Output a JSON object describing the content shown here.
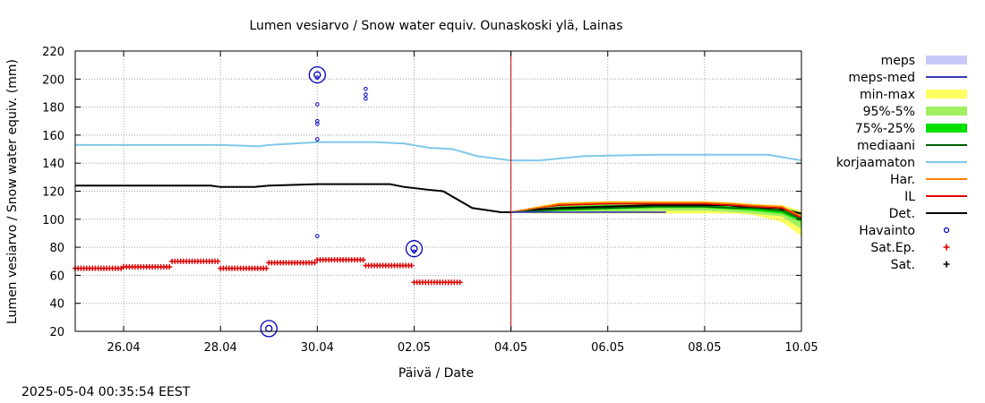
{
  "chart_data": {
    "type": "line",
    "title": "Lumen vesiarvo / Snow water equiv.  Ounaskoski ylä, Lainas",
    "xlabel": "Päivä / Date",
    "ylabel": "Lumen vesiarvo / Snow water equiv. (mm)",
    "ylim": [
      20,
      220
    ],
    "yticks": [
      20,
      40,
      60,
      80,
      100,
      120,
      140,
      160,
      180,
      200,
      220
    ],
    "xlim": [
      0,
      15
    ],
    "xtick_pos": [
      1,
      3,
      5,
      7,
      9,
      11,
      13,
      15
    ],
    "xtick_labels": [
      "26.04",
      "28.04",
      "30.04",
      "02.05",
      "04.05",
      "06.05",
      "08.05",
      "10.05"
    ],
    "now_marker_x": 9.0,
    "grid": true,
    "legend_position": "right",
    "legend": [
      {
        "label": "meps",
        "kind": "band",
        "color": "#c8c8f8"
      },
      {
        "label": "meps-med",
        "kind": "line",
        "color": "#3838b0"
      },
      {
        "label": "min-max",
        "kind": "band",
        "color": "#ffff60"
      },
      {
        "label": "95%-5%",
        "kind": "band",
        "color": "#a0f060"
      },
      {
        "label": "75%-25%",
        "kind": "band",
        "color": "#00e000"
      },
      {
        "label": "mediaani",
        "kind": "line",
        "color": "#006000"
      },
      {
        "label": "korjaamaton",
        "kind": "line",
        "color": "#80c8e8"
      },
      {
        "label": "Har.",
        "kind": "line",
        "color": "#ff8000"
      },
      {
        "label": "IL",
        "kind": "line",
        "color": "#e00000"
      },
      {
        "label": "Det.",
        "kind": "line",
        "color": "#000000"
      },
      {
        "label": "Havainto",
        "kind": "circle",
        "color": "#0000c0"
      },
      {
        "label": "Sat.Ep.",
        "kind": "plus",
        "color": "#e00000"
      },
      {
        "label": "Sat.",
        "kind": "plus",
        "color": "#000000"
      }
    ],
    "series": [
      {
        "name": "korjaamaton",
        "color": "#80c8e8",
        "x": [
          0,
          2.5,
          3,
          3.8,
          4,
          5,
          6.2,
          6.8,
          7.3,
          7.8,
          8.3,
          9,
          9.6,
          10.5,
          12,
          13,
          14.3,
          15
        ],
        "y": [
          153,
          153,
          153,
          152,
          153,
          155,
          155,
          154,
          151,
          150,
          145,
          142,
          142,
          145,
          146,
          146,
          146,
          142
        ]
      },
      {
        "name": "Det.",
        "color": "#000000",
        "x": [
          0,
          2,
          2.8,
          3,
          3.7,
          4,
          5,
          6.5,
          6.8,
          7.3,
          7.6,
          8.2,
          8.8,
          9,
          9.5,
          10,
          11,
          12,
          13,
          13.5,
          14,
          14.5,
          15
        ],
        "y": [
          124,
          124,
          124,
          123,
          123,
          124,
          125,
          125,
          123,
          121,
          120,
          108,
          105,
          105,
          107,
          108,
          109,
          110,
          110,
          110,
          108,
          108,
          104
        ]
      },
      {
        "name": "IL",
        "color": "#e00000",
        "x": [
          9,
          9.5,
          10,
          11,
          12,
          13,
          13.6,
          14,
          14.6,
          15
        ],
        "y": [
          105,
          108,
          110,
          111,
          111,
          111,
          110,
          109,
          108,
          101
        ]
      },
      {
        "name": "Har.",
        "color": "#ff8000",
        "x": [
          9,
          9.5,
          10,
          11,
          12,
          13,
          13.6,
          14,
          14.6,
          15
        ],
        "y": [
          105,
          108,
          111,
          112,
          112,
          112,
          111,
          110,
          109,
          102
        ]
      },
      {
        "name": "mediaani",
        "color": "#006000",
        "x": [
          9,
          9.5,
          10,
          11,
          12,
          13,
          13.6,
          14,
          14.6,
          15
        ],
        "y": [
          105,
          106,
          107,
          108,
          109,
          109,
          108,
          108,
          106,
          100
        ]
      },
      {
        "name": "meps-med",
        "color": "#3838b0",
        "x": [
          9,
          9.5,
          10,
          11,
          12,
          12.2
        ],
        "y": [
          105,
          105,
          105,
          105,
          105,
          105
        ]
      }
    ],
    "bands": [
      {
        "name": "min-max",
        "color": "#ffff60",
        "x": [
          9,
          9.5,
          10,
          11,
          12,
          13,
          13.6,
          14,
          14.6,
          15
        ],
        "low": [
          105,
          104,
          104,
          104,
          104,
          104,
          104,
          103,
          98,
          88
        ],
        "high": [
          105,
          109,
          112,
          113,
          113,
          113,
          112,
          111,
          110,
          106
        ]
      },
      {
        "name": "95%-5%",
        "color": "#a0f060",
        "x": [
          9,
          9.5,
          10,
          11,
          12,
          13,
          13.6,
          14,
          14.6,
          15
        ],
        "low": [
          105,
          105,
          105,
          105,
          106,
          106,
          105,
          104,
          102,
          93
        ],
        "high": [
          105,
          108,
          111,
          112,
          112,
          112,
          111,
          110,
          109,
          105
        ]
      },
      {
        "name": "75%-25%",
        "color": "#00e000",
        "x": [
          9,
          9.5,
          10,
          11,
          12,
          13,
          13.6,
          14,
          14.6,
          15
        ],
        "low": [
          105,
          105,
          106,
          107,
          108,
          108,
          107,
          106,
          104,
          98
        ],
        "high": [
          105,
          107,
          109,
          110,
          110,
          110,
          109,
          109,
          107,
          102
        ]
      },
      {
        "name": "meps",
        "color": "#c8c8f8",
        "x": [
          9,
          12.2
        ],
        "low": [
          104.5,
          104.5
        ],
        "high": [
          105.5,
          105.5
        ]
      }
    ],
    "sat_ep": [
      {
        "x0": 0,
        "x1": 1.0,
        "y": 65
      },
      {
        "x0": 1.0,
        "x1": 2.0,
        "y": 66
      },
      {
        "x0": 2.0,
        "x1": 3.0,
        "y": 70
      },
      {
        "x0": 3.0,
        "x1": 4.0,
        "y": 65
      },
      {
        "x0": 4.0,
        "x1": 5.0,
        "y": 69
      },
      {
        "x0": 5.0,
        "x1": 6.0,
        "y": 71
      },
      {
        "x0": 6.0,
        "x1": 7.0,
        "y": 67
      },
      {
        "x0": 7.0,
        "x1": 8.0,
        "y": 55
      }
    ],
    "havainto": [
      {
        "x": 4.0,
        "y": 22,
        "big": true
      },
      {
        "x": 5.0,
        "y": 203,
        "big": true
      },
      {
        "x": 5.0,
        "y": 201,
        "big": false
      },
      {
        "x": 5.0,
        "y": 182,
        "big": false
      },
      {
        "x": 5.0,
        "y": 170,
        "big": false
      },
      {
        "x": 5.0,
        "y": 168,
        "big": false
      },
      {
        "x": 5.0,
        "y": 157,
        "big": false
      },
      {
        "x": 5.0,
        "y": 88,
        "big": false
      },
      {
        "x": 6.0,
        "y": 193,
        "big": false
      },
      {
        "x": 6.0,
        "y": 189,
        "big": false
      },
      {
        "x": 6.0,
        "y": 186,
        "big": false
      },
      {
        "x": 7.0,
        "y": 79,
        "big": true
      },
      {
        "x": 7.0,
        "y": 77,
        "big": false
      }
    ]
  },
  "timestamp": "2025-05-04 00:35:54 EEST"
}
